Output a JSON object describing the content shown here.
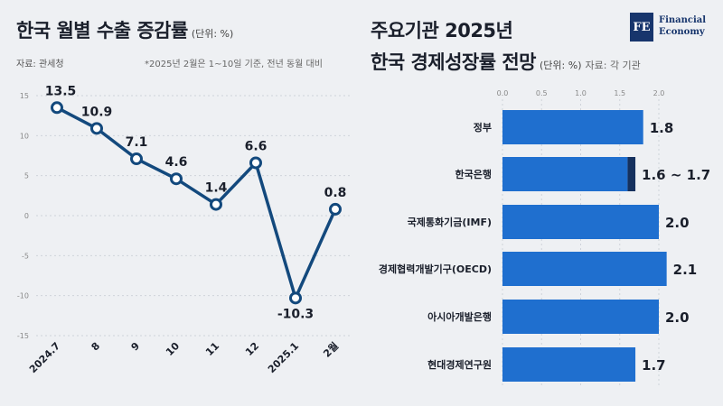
{
  "left": {
    "title": "한국 월별 수출 증감률",
    "unit": "(단위: %)",
    "source": "자료: 관세청",
    "note": "*2025년 2월은 1~10일 기준, 전년 동월 대비"
  },
  "right": {
    "title_line1": "주요기관 2025년",
    "title_line2": "한국 경제성장률 전망",
    "unit": "(단위: %)",
    "source": "자료: 각 기관"
  },
  "logo": {
    "mark": "FE",
    "line1": "Financial",
    "line2": "Economy"
  },
  "colors": {
    "line": "#13497d",
    "bar": "#1f6fcf",
    "bar_dark": "#15315e",
    "text": "#1a1f2b"
  },
  "chart_data": [
    {
      "type": "line",
      "x": [
        "2024.7",
        "8",
        "9",
        "10",
        "11",
        "12",
        "2025.1",
        "2월"
      ],
      "series": [
        {
          "values": [
            13.5,
            10.9,
            7.1,
            4.6,
            1.4,
            6.6,
            -10.3,
            0.8
          ]
        }
      ],
      "data_labels": [
        "13.5",
        "10.9",
        "7.1",
        "4.6",
        "1.4",
        "6.6",
        "-10.3",
        "0.8"
      ],
      "yticks": [
        15,
        10,
        5,
        0,
        -5,
        -10,
        -15
      ],
      "ylim": [
        -15,
        15
      ],
      "grid": true
    },
    {
      "type": "bar",
      "orientation": "horizontal",
      "categories": [
        "정부",
        "한국은행",
        "국제통화기금(IMF)",
        "경제협력개발기구(OECD)",
        "아시아개발은행",
        "현대경제연구원"
      ],
      "values": [
        1.8,
        1.7,
        2.0,
        2.1,
        2.0,
        1.7
      ],
      "range_low": [
        null,
        1.6,
        null,
        null,
        null,
        null
      ],
      "value_labels": [
        "1.8",
        "1.6 ~ 1.7",
        "2.0",
        "2.1",
        "2.0",
        "1.7"
      ],
      "xticks": [
        "0.0",
        "0.5",
        "1.0",
        "1.5",
        "2.0"
      ],
      "xlim": [
        0,
        2.1
      ],
      "grid": true
    }
  ]
}
